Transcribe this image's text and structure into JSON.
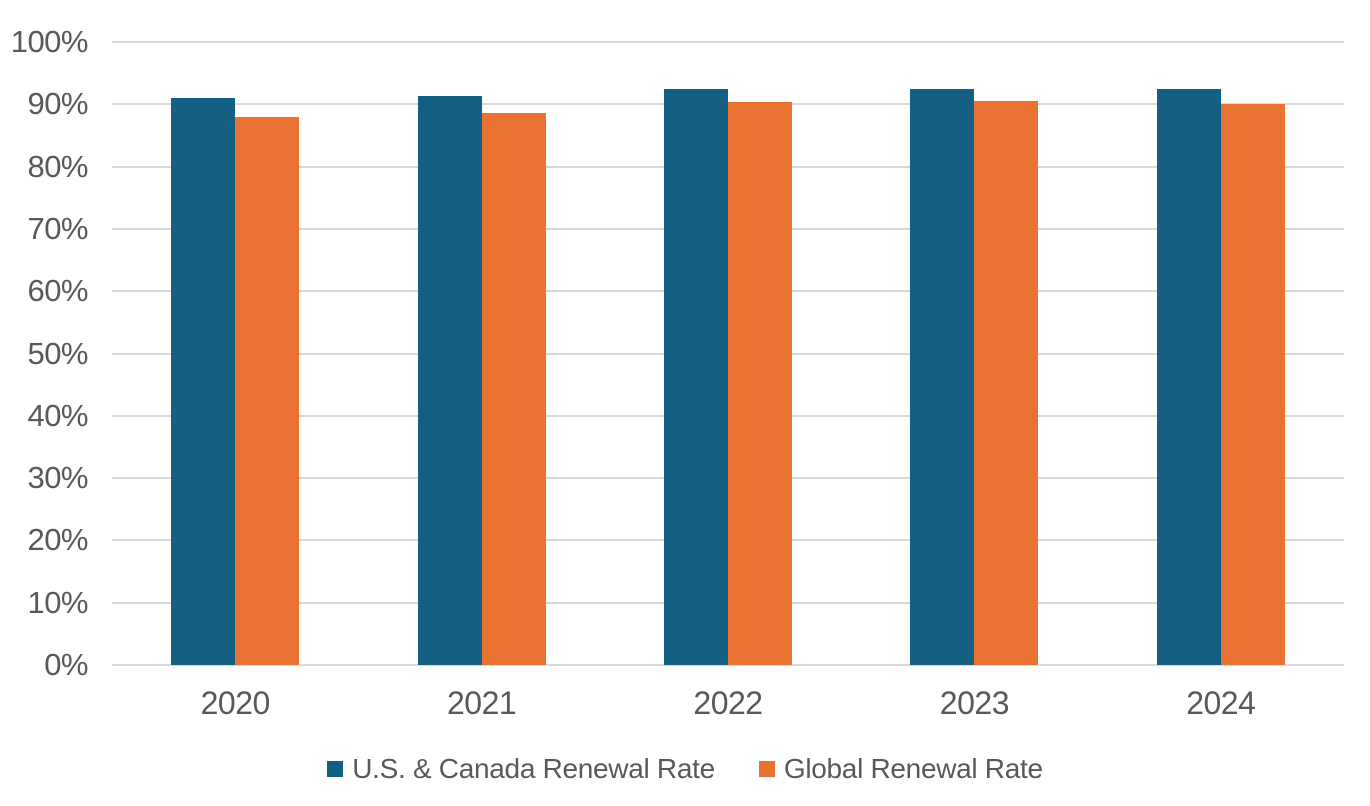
{
  "chart_data": {
    "type": "bar",
    "title": "",
    "xlabel": "",
    "ylabel": "",
    "categories": [
      "2020",
      "2021",
      "2022",
      "2023",
      "2024"
    ],
    "series": [
      {
        "name": "U.S. & Canada Renewal Rate",
        "color": "#156082",
        "values": [
          91.0,
          91.3,
          92.5,
          92.5,
          92.5
        ]
      },
      {
        "name": "Global Renewal Rate",
        "color": "#E97132",
        "values": [
          88.0,
          88.6,
          90.3,
          90.5,
          90.1
        ]
      }
    ],
    "ylim": [
      0,
      100
    ],
    "ytick_step": 10,
    "ytick_labels": [
      "0%",
      "10%",
      "20%",
      "30%",
      "40%",
      "50%",
      "60%",
      "70%",
      "80%",
      "90%",
      "100%"
    ],
    "grid": true,
    "gridline_orientation": "horizontal",
    "legend_position": "bottom"
  },
  "colors": {
    "background": "#FFFFFF",
    "gridline": "#D9D9D9",
    "axis_text": "#595959",
    "legend_text": "#595959",
    "series1": "#156082",
    "series2": "#E97132"
  }
}
